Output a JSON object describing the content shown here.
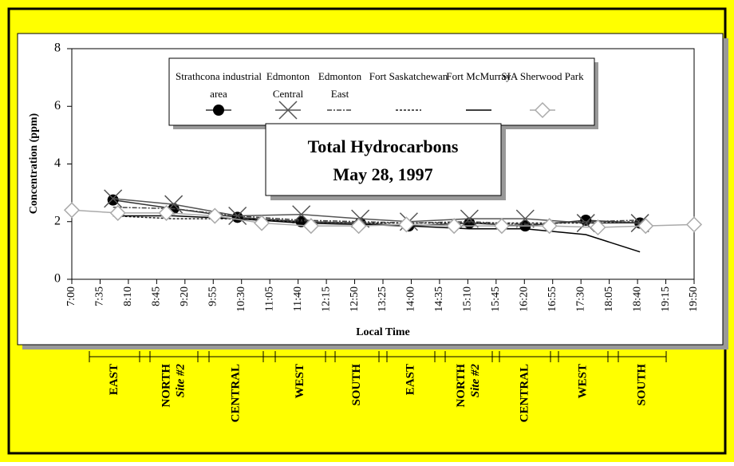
{
  "chart_data": {
    "type": "line",
    "title": "Total Hydrocarbons",
    "subtitle": "May 28, 1997",
    "y_label": "Concentration (ppm)",
    "x_label": "Local Time",
    "ylim": [
      0,
      8
    ],
    "yticks": [
      0,
      2,
      4,
      6,
      8
    ],
    "xlim": [
      420,
      1190
    ],
    "xticks": [
      {
        "value": 420,
        "label": "7:00"
      },
      {
        "value": 455,
        "label": "7:35"
      },
      {
        "value": 490,
        "label": "8:10"
      },
      {
        "value": 525,
        "label": "8:45"
      },
      {
        "value": 560,
        "label": "9:20"
      },
      {
        "value": 595,
        "label": "9:55"
      },
      {
        "value": 630,
        "label": "10:30"
      },
      {
        "value": 665,
        "label": "11:05"
      },
      {
        "value": 700,
        "label": "11:40"
      },
      {
        "value": 735,
        "label": "12:15"
      },
      {
        "value": 770,
        "label": "12:50"
      },
      {
        "value": 805,
        "label": "13:25"
      },
      {
        "value": 840,
        "label": "14:00"
      },
      {
        "value": 875,
        "label": "14:35"
      },
      {
        "value": 910,
        "label": "15:10"
      },
      {
        "value": 945,
        "label": "15:45"
      },
      {
        "value": 980,
        "label": "16:20"
      },
      {
        "value": 1015,
        "label": "16:55"
      },
      {
        "value": 1050,
        "label": "17:30"
      },
      {
        "value": 1085,
        "label": "18:05"
      },
      {
        "value": 1120,
        "label": "18:40"
      },
      {
        "value": 1155,
        "label": "19:15"
      },
      {
        "value": 1190,
        "label": "19:50"
      }
    ],
    "series": [
      {
        "name": "Strathcona industrial area",
        "color": "#333333",
        "marker": "circle",
        "dash": "none",
        "x": [
          471,
          546,
          625,
          704,
          777,
          837,
          912,
          981,
          1056,
          1123
        ],
        "values": [
          2.75,
          2.45,
          2.15,
          2.0,
          1.95,
          1.85,
          1.95,
          1.85,
          2.05,
          1.95
        ]
      },
      {
        "name": "Edmonton Central",
        "color": "#555555",
        "marker": "x",
        "dash": "none",
        "x": [
          471,
          546,
          625,
          704,
          777,
          837,
          912,
          981,
          1056,
          1123
        ],
        "values": [
          2.8,
          2.6,
          2.2,
          2.25,
          2.1,
          2.0,
          2.1,
          2.1,
          1.95,
          1.95
        ]
      },
      {
        "name": "Edmonton East",
        "color": "#444444",
        "marker": "none",
        "dash": "6,2,2,2",
        "x": [
          471,
          546,
          625,
          704,
          777,
          837,
          912,
          981,
          1056,
          1123
        ],
        "values": [
          2.5,
          2.45,
          2.2,
          2.05,
          2.0,
          1.95,
          2.0,
          1.9,
          2.0,
          2.05
        ]
      },
      {
        "name": "Fort Saskatchewan",
        "color": "#222222",
        "marker": "none",
        "dash": "3,2",
        "x": [
          471,
          546,
          625,
          704,
          777,
          837,
          912,
          981,
          1056,
          1123
        ],
        "values": [
          2.2,
          2.1,
          2.1,
          2.0,
          1.95,
          1.95,
          1.95,
          1.95,
          1.95,
          2.0
        ]
      },
      {
        "name": "Fort McMurray",
        "color": "#000000",
        "marker": "none",
        "dash": "none",
        "x": [
          471,
          546,
          625,
          704,
          777,
          837,
          912,
          981,
          1056,
          1123
        ],
        "values": [
          2.2,
          2.2,
          2.1,
          1.95,
          1.9,
          1.85,
          1.75,
          1.75,
          1.55,
          0.95
        ]
      },
      {
        "name": "SIA Sherwood Park",
        "color": "#aaaaaa",
        "marker": "diamond",
        "dash": "none",
        "x": [
          420,
          477,
          537,
          597,
          655,
          716,
          775,
          834,
          893,
          952,
          1011,
          1071,
          1130,
          1190
        ],
        "values": [
          2.4,
          2.3,
          2.3,
          2.2,
          1.95,
          1.85,
          1.85,
          1.9,
          1.85,
          1.85,
          1.85,
          1.8,
          1.85,
          1.9
        ]
      }
    ],
    "annotations": [
      {
        "text": "EAST"
      },
      {
        "text": "NORTH",
        "subtext": "Site #2"
      },
      {
        "text": "CENTRAL"
      },
      {
        "text": "WEST"
      },
      {
        "text": "SOUTH"
      },
      {
        "text": "EAST"
      },
      {
        "text": "NORTH",
        "subtext": "Site #2"
      },
      {
        "text": "CENTRAL"
      },
      {
        "text": "WEST"
      },
      {
        "text": "SOUTH"
      }
    ]
  }
}
